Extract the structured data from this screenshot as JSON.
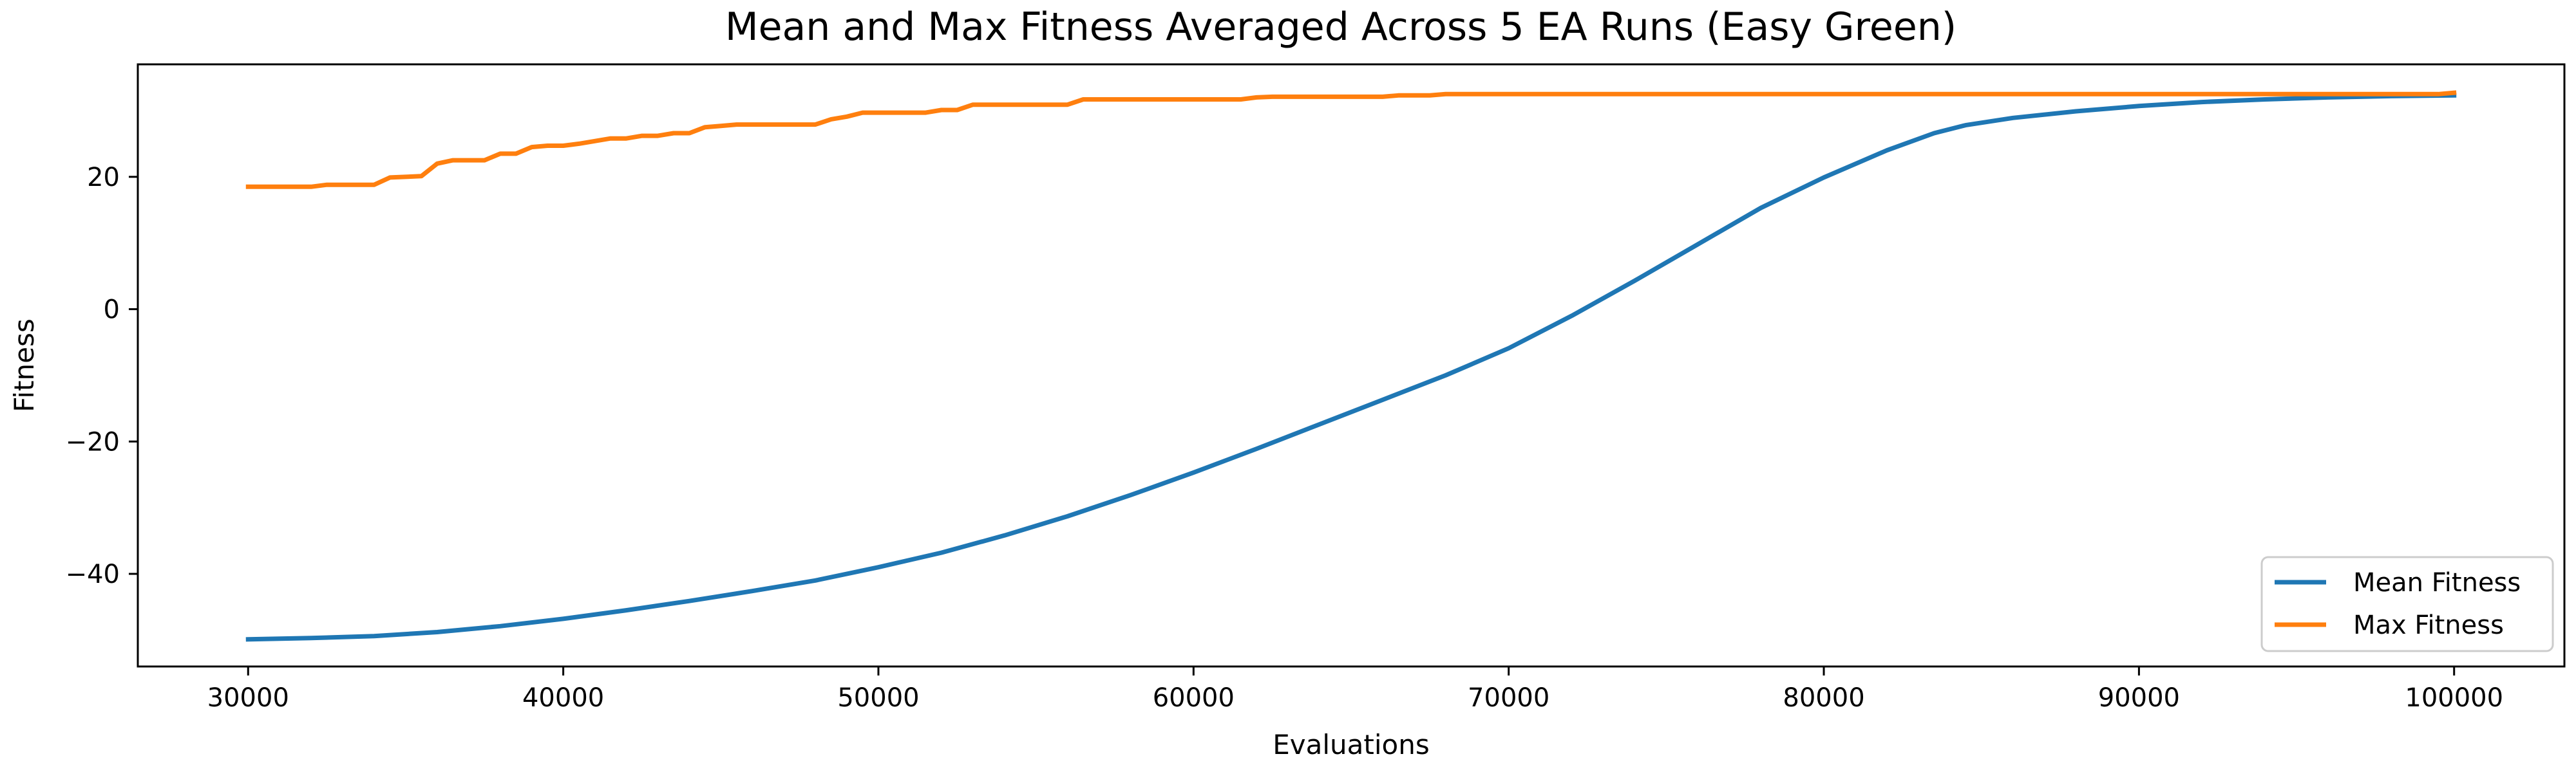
{
  "chart_data": {
    "type": "line",
    "title": "Mean and Max Fitness Averaged Across 5 EA Runs (Easy Green)",
    "xlabel": "Evaluations",
    "ylabel": "Fitness",
    "xlim": [
      26500,
      103500
    ],
    "ylim": [
      -54,
      37
    ],
    "x_ticks": [
      30000,
      40000,
      50000,
      60000,
      70000,
      80000,
      90000,
      100000
    ],
    "x_tick_labels": [
      "30000",
      "40000",
      "50000",
      "60000",
      "70000",
      "80000",
      "90000",
      "100000"
    ],
    "y_ticks": [
      -40,
      -20,
      0,
      20
    ],
    "y_tick_labels": [
      "−40",
      "−20",
      "0",
      "20"
    ],
    "grid": false,
    "legend_position": "lower-right",
    "series": [
      {
        "name": "Mean Fitness",
        "color": "#1f77b4",
        "x": [
          30000,
          32000,
          34000,
          36000,
          38000,
          40000,
          42000,
          44000,
          46000,
          48000,
          50000,
          52000,
          54000,
          56000,
          58000,
          60000,
          62000,
          64000,
          66000,
          68000,
          70000,
          72000,
          74000,
          76000,
          78000,
          80000,
          82000,
          83500,
          84500,
          86000,
          88000,
          90000,
          92000,
          94000,
          96000,
          98000,
          100000
        ],
        "y": [
          -49.9,
          -49.7,
          -49.4,
          -48.8,
          -47.9,
          -46.8,
          -45.5,
          -44.1,
          -42.6,
          -41.0,
          -39.0,
          -36.8,
          -34.2,
          -31.3,
          -28.1,
          -24.7,
          -21.1,
          -17.4,
          -13.7,
          -10.0,
          -5.9,
          -1.0,
          4.3,
          9.8,
          15.3,
          19.9,
          24.0,
          26.6,
          27.8,
          28.9,
          29.9,
          30.7,
          31.3,
          31.7,
          32.0,
          32.2,
          32.3
        ]
      },
      {
        "name": "Max Fitness",
        "color": "#ff7f0e",
        "x": [
          30000,
          32000,
          32500,
          34000,
          34500,
          35500,
          36000,
          36500,
          37500,
          38000,
          38500,
          39000,
          39500,
          40000,
          40500,
          41000,
          41500,
          42000,
          42500,
          43000,
          43500,
          44000,
          44500,
          45000,
          45500,
          48000,
          48500,
          49000,
          49500,
          51500,
          52000,
          52500,
          53000,
          56000,
          56500,
          61500,
          62000,
          62500,
          66000,
          66500,
          67500,
          68000,
          99500,
          100000
        ],
        "y": [
          18.5,
          18.5,
          18.8,
          18.8,
          19.9,
          20.1,
          22.0,
          22.5,
          22.5,
          23.5,
          23.5,
          24.5,
          24.7,
          24.7,
          25.0,
          25.4,
          25.8,
          25.8,
          26.2,
          26.2,
          26.6,
          26.6,
          27.5,
          27.7,
          27.9,
          27.9,
          28.7,
          29.1,
          29.7,
          29.7,
          30.1,
          30.1,
          30.9,
          30.9,
          31.7,
          31.7,
          32.0,
          32.1,
          32.1,
          32.3,
          32.3,
          32.5,
          32.5,
          32.7
        ]
      }
    ]
  }
}
